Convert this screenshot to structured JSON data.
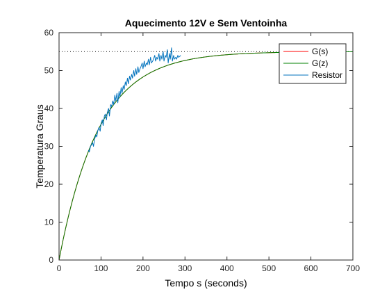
{
  "chart_data": {
    "type": "line",
    "title": "Aquecimento 12V e Sem Ventoinha",
    "xlabel": "Tempo s (seconds)",
    "ylabel": "Temperatura Graus",
    "xlim": [
      0,
      700
    ],
    "ylim": [
      0,
      60
    ],
    "xticks": [
      0,
      100,
      200,
      300,
      400,
      500,
      600,
      700
    ],
    "yticks": [
      0,
      10,
      20,
      30,
      40,
      50,
      60
    ],
    "grid": false,
    "legend_position": "top-right",
    "reference_line": {
      "y": 55,
      "style": "dotted",
      "color": "#000000"
    },
    "series": [
      {
        "name": "G(s)",
        "color": "#ff0000",
        "kind": "first-order-step",
        "final_value": 55,
        "time_constant": 95,
        "x_range": [
          0,
          700
        ]
      },
      {
        "name": "G(z)",
        "color": "#008000",
        "kind": "first-order-step",
        "final_value": 55,
        "time_constant": 95,
        "x_range": [
          0,
          700
        ]
      },
      {
        "name": "Resistor",
        "color": "#0072bd",
        "kind": "measured",
        "x": [
          70,
          72,
          75,
          78,
          80,
          82,
          85,
          88,
          90,
          92,
          95,
          98,
          100,
          103,
          105,
          108,
          110,
          113,
          115,
          118,
          120,
          123,
          125,
          128,
          130,
          133,
          135,
          138,
          140,
          143,
          145,
          148,
          150,
          153,
          155,
          158,
          160,
          163,
          165,
          168,
          170,
          173,
          175,
          178,
          180,
          183,
          185,
          188,
          190,
          193,
          195,
          198,
          200,
          203,
          205,
          208,
          210,
          213,
          215,
          218,
          220,
          223,
          225,
          228,
          230,
          233,
          235,
          238,
          240,
          243,
          245,
          248,
          250,
          253,
          255,
          258,
          260,
          263,
          265,
          268,
          270,
          273,
          275,
          278,
          280,
          283,
          285,
          288,
          290
        ],
        "y": [
          29,
          28.5,
          30,
          30.5,
          31,
          30,
          32,
          33,
          32.5,
          34,
          35,
          34,
          36,
          37,
          35.5,
          38,
          38.5,
          37,
          39,
          40,
          38,
          41,
          40.5,
          42,
          41,
          43.5,
          42,
          44,
          41.5,
          44.5,
          43,
          45.5,
          44,
          46,
          45,
          47,
          46,
          48,
          46.5,
          48.5,
          47.5,
          49,
          48,
          50,
          48.5,
          50.5,
          49,
          51,
          49.5,
          50.5,
          51,
          52,
          50.5,
          52.5,
          51,
          52,
          51.5,
          53,
          51.5,
          53.5,
          52,
          52.5,
          53,
          54,
          52.5,
          53.5,
          53,
          54.5,
          52.5,
          54,
          53,
          55,
          52.5,
          54,
          53.5,
          55.5,
          52,
          54.5,
          53,
          56,
          52.5,
          54,
          53,
          53.5,
          53,
          54,
          53.5,
          53.8,
          54
        ]
      }
    ]
  }
}
